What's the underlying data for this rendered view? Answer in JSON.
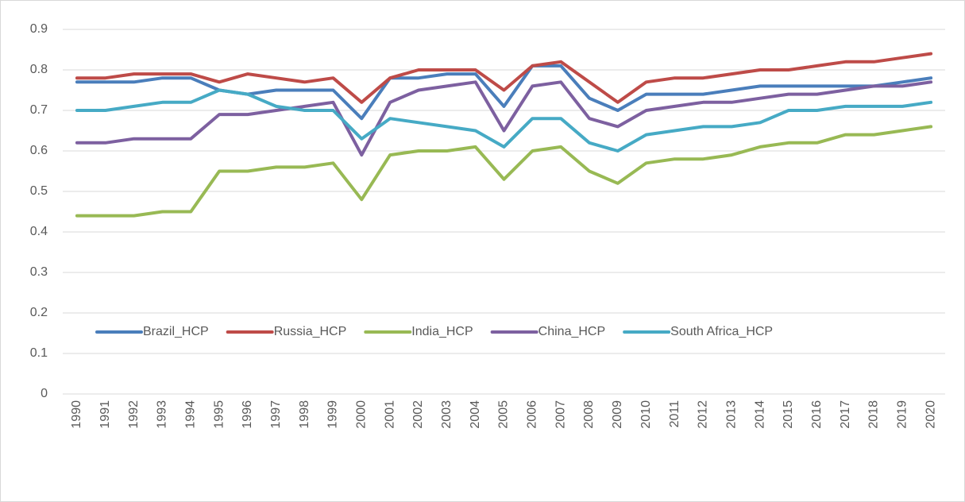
{
  "chart_data": {
    "type": "line",
    "categories": [
      "1990",
      "1991",
      "1992",
      "1993",
      "1994",
      "1995",
      "1996",
      "1997",
      "1998",
      "1999",
      "2000",
      "2001",
      "2002",
      "2003",
      "2004",
      "2005",
      "2006",
      "2007",
      "2008",
      "2009",
      "2010",
      "2011",
      "2012",
      "2013",
      "2014",
      "2015",
      "2016",
      "2017",
      "2018",
      "2019",
      "2020"
    ],
    "series": [
      {
        "name": "Brazil_HCP",
        "color": "#4a7ebb",
        "values": [
          0.77,
          0.77,
          0.77,
          0.78,
          0.78,
          0.75,
          0.74,
          0.75,
          0.75,
          0.75,
          0.68,
          0.78,
          0.78,
          0.79,
          0.79,
          0.71,
          0.81,
          0.81,
          0.73,
          0.7,
          0.74,
          0.74,
          0.74,
          0.75,
          0.76,
          0.76,
          0.76,
          0.76,
          0.76,
          0.77,
          0.78
        ]
      },
      {
        "name": "Russia_HCP",
        "color": "#be4b48",
        "values": [
          0.78,
          0.78,
          0.79,
          0.79,
          0.79,
          0.77,
          0.79,
          0.78,
          0.77,
          0.78,
          0.72,
          0.78,
          0.8,
          0.8,
          0.8,
          0.75,
          0.81,
          0.82,
          0.77,
          0.72,
          0.77,
          0.78,
          0.78,
          0.79,
          0.8,
          0.8,
          0.81,
          0.82,
          0.82,
          0.83,
          0.84
        ]
      },
      {
        "name": "India_HCP",
        "color": "#98b954",
        "values": [
          0.44,
          0.44,
          0.44,
          0.45,
          0.45,
          0.55,
          0.55,
          0.56,
          0.56,
          0.57,
          0.48,
          0.59,
          0.6,
          0.6,
          0.61,
          0.53,
          0.6,
          0.61,
          0.55,
          0.52,
          0.57,
          0.58,
          0.58,
          0.59,
          0.61,
          0.62,
          0.62,
          0.64,
          0.64,
          0.65,
          0.66
        ]
      },
      {
        "name": "China_HCP",
        "color": "#7d60a0",
        "values": [
          0.62,
          0.62,
          0.63,
          0.63,
          0.63,
          0.69,
          0.69,
          0.7,
          0.71,
          0.72,
          0.59,
          0.72,
          0.75,
          0.76,
          0.77,
          0.65,
          0.76,
          0.77,
          0.68,
          0.66,
          0.7,
          0.71,
          0.72,
          0.72,
          0.73,
          0.74,
          0.74,
          0.75,
          0.76,
          0.76,
          0.77
        ]
      },
      {
        "name": "South Africa_HCP",
        "color": "#46aac5",
        "values": [
          0.7,
          0.7,
          0.71,
          0.72,
          0.72,
          0.75,
          0.74,
          0.71,
          0.7,
          0.7,
          0.63,
          0.68,
          0.67,
          0.66,
          0.65,
          0.61,
          0.68,
          0.68,
          0.62,
          0.6,
          0.64,
          0.65,
          0.66,
          0.66,
          0.67,
          0.7,
          0.7,
          0.71,
          0.71,
          0.71,
          0.72
        ]
      }
    ],
    "ylim": [
      0,
      0.9
    ],
    "yticks": [
      0,
      0.1,
      0.2,
      0.3,
      0.4,
      0.5,
      0.6,
      0.7,
      0.8,
      0.9
    ],
    "grid": true,
    "legend": "inside-bottom"
  }
}
